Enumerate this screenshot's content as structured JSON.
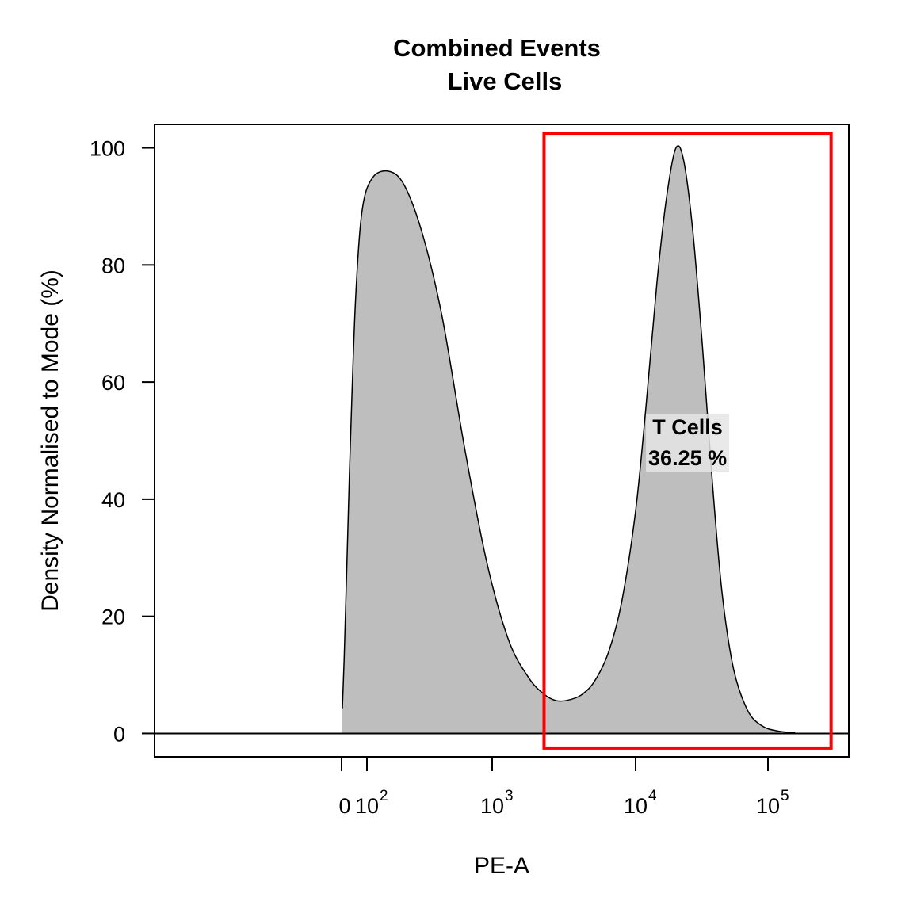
{
  "chart_data": {
    "type": "area",
    "title_lines": [
      "Combined Events",
      "Live Cells"
    ],
    "xlabel": "PE-A",
    "ylabel": "Density Normalised to Mode (%)",
    "x_scale": "logicle",
    "ylim": [
      -4,
      104
    ],
    "y_ticks": [
      0,
      20,
      40,
      60,
      80,
      100
    ],
    "x_ticks": [
      {
        "value": 0,
        "base": "0",
        "exp": ""
      },
      {
        "value": 100,
        "base": "10",
        "exp": "2"
      },
      {
        "value": 1000,
        "base": "10",
        "exp": "3"
      },
      {
        "value": 10000,
        "base": "10",
        "exp": "4"
      },
      {
        "value": 100000,
        "base": "10",
        "exp": "5"
      }
    ],
    "series": [
      {
        "fill": "#bebebe",
        "stroke": "#000000",
        "x": [
          3,
          10,
          20,
          35,
          55,
          80,
          110,
          150,
          200,
          280,
          400,
          600,
          900,
          1300,
          1800,
          2300,
          2800,
          3400,
          4200,
          5200,
          6500,
          8000,
          10000,
          12000,
          14500,
          17000,
          20000,
          23000,
          27000,
          32000,
          38000,
          45000,
          55000,
          70000,
          90000,
          120000,
          160000
        ],
        "y": [
          4.3,
          12.5,
          27.5,
          50,
          74,
          89,
          94.8,
          96,
          93.5,
          85,
          71,
          49,
          29.5,
          16,
          9.5,
          6.7,
          5.6,
          5.7,
          6.6,
          9,
          14,
          22.5,
          38,
          56,
          77,
          91,
          99.8,
          98,
          86,
          66,
          43,
          24,
          11,
          4,
          1.3,
          0.4,
          0.1
        ]
      }
    ],
    "gate": {
      "name": "T Cells",
      "percent": "36.25 %",
      "x_range": [
        2300,
        300000
      ],
      "y_range": [
        -2.5,
        102.5
      ],
      "color": "#ff0000"
    }
  }
}
